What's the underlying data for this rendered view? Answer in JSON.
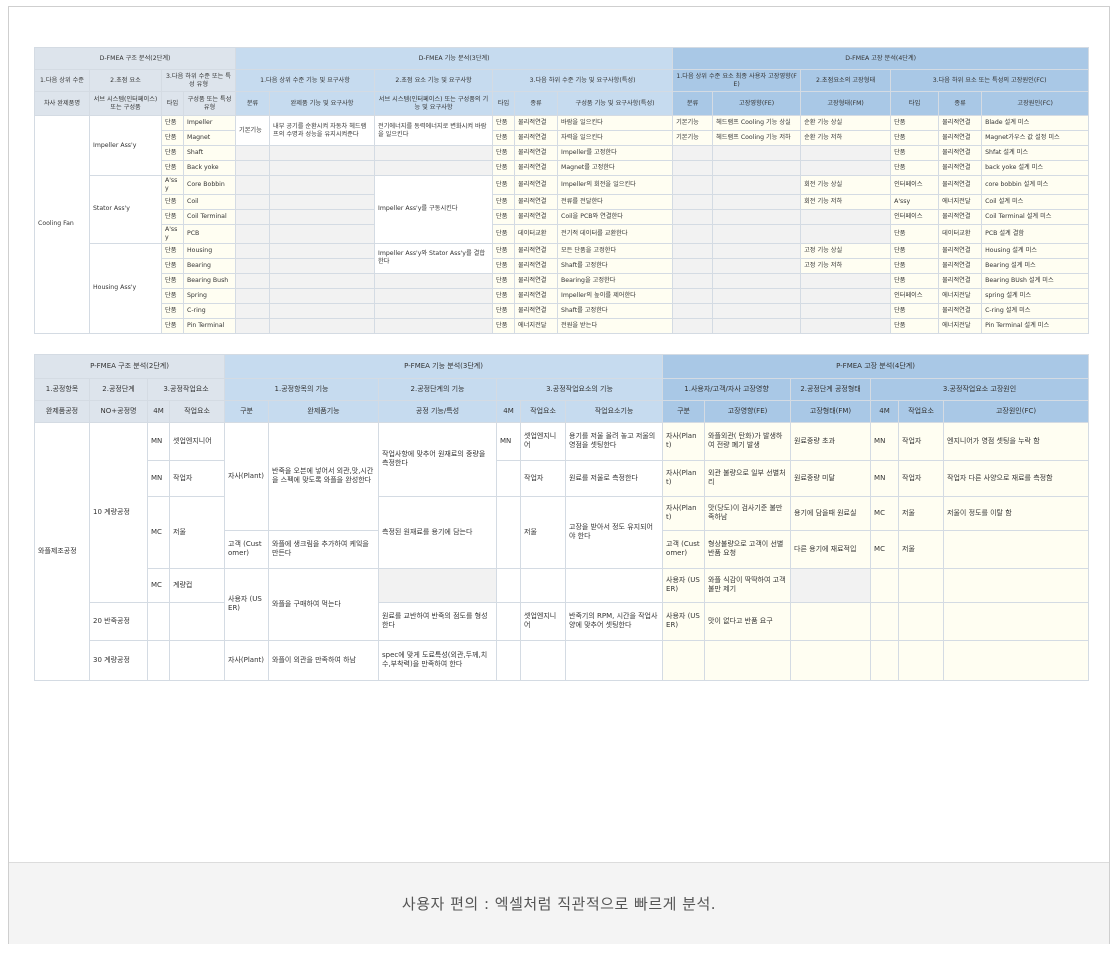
{
  "caption": "사용자 편의 : 엑셀처럼 직관적으로 빠르게 분석.",
  "dfmea": {
    "sec": [
      "D-FMEA 구조 분석(2단계)",
      "D-FMEA 기능 분석(3단계)",
      "D-FMEA 고장 분석(4단계)"
    ],
    "h2": [
      "1.다음 상위 수준",
      "2.초점 요소",
      "3.다음 하위 수준 또는 특성 유형",
      "1.다음 상위 수준 기능 및 요구사항",
      "2.초점 요소 기능 및 요구사항",
      "3.다음 하위 수준 기능 및 요구사항(특성)",
      "1.다음 상위 수준 요소 최종 사용자 고장영향(FE)",
      "2.초점요소의 고장형태",
      "3.다음 하위 요소 또는 특성의 고장원인(FC)"
    ],
    "h3": [
      "차사 완제품명",
      "서브 시스템(인터페이스) 또는 구성품",
      "타입",
      "구성품 또는 특성유형",
      "분류",
      "완제품 기능 및 요구사항",
      "서브 시스템(인터페이스) 또는 구성품의 기능 및 요구사항",
      "타입",
      "종류",
      "구성품 기능 및 요구사항(특성)",
      "분류",
      "고장영향(FE)",
      "고장형태(FM)",
      "타입",
      "종류",
      "고장원인(FC)"
    ],
    "product": "Cooling Fan",
    "groups": [
      "Impeller Ass'y",
      "Stator Ass'y",
      "Housing Ass'y"
    ],
    "fn_type": "기본기능",
    "fn_product": "내부 공기를 순환시켜 자동차 헤드램프의 수명과 성능을 유지시켜준다",
    "fn_sub": [
      "전기에너지를 동력에너지로 변화시켜 바람을 일으킨다",
      "Impeller Ass'y를 구동시킨다",
      "Impeller Ass'y와 Stator Ass'y를 결합한다"
    ],
    "rows": [
      [
        "단품",
        "Impeller",
        "단품",
        "물리적연결",
        "바람을 일으킨다",
        "기본기능",
        "헤드램프 Cooling 기능 상실",
        "순환 기능 상실",
        "단품",
        "물리적연결",
        "Blade 설계 미스"
      ],
      [
        "단품",
        "Magnet",
        "단품",
        "물리적연결",
        "자력을 일으킨다",
        "기본기능",
        "헤드램프 Cooling 기능 저하",
        "순환 기능 저하",
        "단품",
        "물리적연결",
        "Magnet가우스 값 설정 미스"
      ],
      [
        "단품",
        "Shaft",
        "단품",
        "물리적연결",
        "Impeller를 고정한다",
        "",
        "",
        "",
        "단품",
        "물리적연결",
        "Shfat 설계 미스"
      ],
      [
        "단품",
        "Back yoke",
        "단품",
        "물리적연결",
        "Magnet를 고정한다",
        "",
        "",
        "",
        "단품",
        "물리적연결",
        "back yoke 설계 미스"
      ],
      [
        "A'ssy",
        "Core Bobbin",
        "단품",
        "물리적연결",
        "Impeller의 회전을 일으킨다",
        "",
        "",
        "회전 기능 상실",
        "인터페이스",
        "물리적연결",
        "core bobbin 설계 미스"
      ],
      [
        "단품",
        "Coil",
        "단품",
        "물리적연결",
        "전류를 전달한다",
        "",
        "",
        "회전 기능 저하",
        "A'ssy",
        "에너지전달",
        "Coil 설계 미스"
      ],
      [
        "단품",
        "Coil Terminal",
        "단품",
        "물리적연결",
        "Coil을 PCB와 연결한다",
        "",
        "",
        "",
        "인터페이스",
        "물리적연결",
        "Coil Terminal 설계 미스"
      ],
      [
        "A'ssy",
        "PCB",
        "단품",
        "데이터교환",
        "전기적 데이터를 교환한다",
        "",
        "",
        "",
        "단품",
        "데이터교환",
        "PCB 설계 결함"
      ],
      [
        "단품",
        "Housing",
        "단품",
        "물리적연결",
        "모든 단품을 고정한다",
        "",
        "",
        "고정 기능 상실",
        "단품",
        "물리적연결",
        "Housing 설계 미스"
      ],
      [
        "단품",
        "Bearing",
        "단품",
        "물리적연결",
        "Shaft를 고정한다",
        "",
        "",
        "고정 기능 저하",
        "단품",
        "물리적연결",
        "Bearing 설계 미스"
      ],
      [
        "단품",
        "Bearing Bush",
        "단품",
        "물리적연결",
        "Bearing을 고정한다",
        "",
        "",
        "",
        "단품",
        "물리적연결",
        "Bearing BUsh 설계 미스"
      ],
      [
        "단품",
        "Spring",
        "단품",
        "물리적연결",
        "Impeller의 높이를 제어한다",
        "",
        "",
        "",
        "인터페이스",
        "에너지전달",
        "spring 설계 미스"
      ],
      [
        "단품",
        "C-ring",
        "단품",
        "물리적연결",
        "Shaft를 고정한다",
        "",
        "",
        "",
        "단품",
        "물리적연결",
        "C-ring 설계 미스"
      ],
      [
        "단품",
        "Pin Terminal",
        "단품",
        "에너지전달",
        "전원을 받는다",
        "",
        "",
        "",
        "단품",
        "에너지전달",
        "Pin Terminal 설계 미스"
      ]
    ]
  },
  "pfmea": {
    "sec": [
      "P-FMEA 구조 분석(2단계)",
      "P-FMEA 기능 분석(3단계)",
      "P-FMEA 고장 분석(4단계)"
    ],
    "h2": [
      "1.공정항목",
      "2.공정단계",
      "3.공정작업요소",
      "1.공정항목의 기능",
      "2.공정단계의 기능",
      "3.공정작업요소의 기능",
      "1.사용자/고객/자사 고장영향",
      "2.공정단계 공정형태",
      "3.공정작업요소 고장원인"
    ],
    "h3": [
      "완제품공정",
      "NO+공정명",
      "4M",
      "작업요소",
      "구분",
      "완제품기능",
      "공정 기능/특성",
      "4M",
      "작업요소",
      "작업요소기능",
      "구분",
      "고장영향(FE)",
      "고장형태(FM)",
      "4M",
      "작업요소",
      "고장원인(FC)"
    ],
    "product": "와플제조공정",
    "steps": [
      "10 계량공정",
      "20 반죽공정",
      "30 계량공정"
    ],
    "m4": [
      "MN",
      "MN",
      "MC",
      "MC"
    ],
    "elem": [
      "셋업엔지니어",
      "작업자",
      "저울",
      "계량컵"
    ],
    "cls": [
      "자사(Plant)",
      "고객 (Customer)",
      "사용자 (USER)",
      "자사(Plant)"
    ],
    "fn_product": [
      "반죽을 오븐에 넣어서 외관,맛,시간을 스펙에 맞도록 와플을 완성한다",
      "와플에 생크림을 추가하여 케잌을 만든다",
      "와플을 구매하여 먹는다",
      "와플이 외관을 만족하여 하남"
    ],
    "fn_step": [
      "작업사항에 맞추어 원재료의 중량을 측정한다",
      "측정된 원재료를 용기에 담는다",
      "원료를 교반하여 반죽의 점도를 형성한다",
      "spec에 맞게 도료특성(외관,두께,치수,부착력)을 만족하여 한다"
    ],
    "we_4m": "MN",
    "we_elem": [
      "셋업엔지니어",
      "작업자",
      "저울",
      "셋업엔지니어"
    ],
    "we_fn": [
      "용기를 저울 올려 놓고 저울의 영점을 셋팅한다",
      "원료를 저울로 측정한다",
      "고장을 받아서 정도 유지되어야 한다",
      "반죽기의 RPM, 시간을 작업사양에 맞추어 셋팅한다"
    ],
    "fe_cls": [
      "자사(Plant)",
      "자사(Plant)",
      "자사(Plant)",
      "고객 (Customer)",
      "사용자 (USER)",
      "사용자 (USER)"
    ],
    "fe": [
      "와플외관( 탄화)가 발생하여 전량 폐기 발생",
      "외관 불량으로 일부 선별처리",
      "맛(당도)이 검사기준 불만족하남",
      "형상불량으로 고객이 선별 반품 요청",
      "와플 식감이 딱딱하여 고객불만 제기",
      "맛이 없다고 반품 요구"
    ],
    "fm": [
      "원료중량 초과",
      "원료중량 미달",
      "용기에 담을때 원료실",
      "다른 용기에 재료적입"
    ],
    "fc_4m": [
      "MN",
      "MN",
      "MC",
      "MC"
    ],
    "fc_elem": [
      "작업자",
      "작업자",
      "저울",
      "저울"
    ],
    "fc": [
      "엔지니어가 영점 셋팅을 누락 함",
      "작업자 다른 사양으로 재료를 측정함",
      "저울이 정도를 이탈 함"
    ]
  }
}
